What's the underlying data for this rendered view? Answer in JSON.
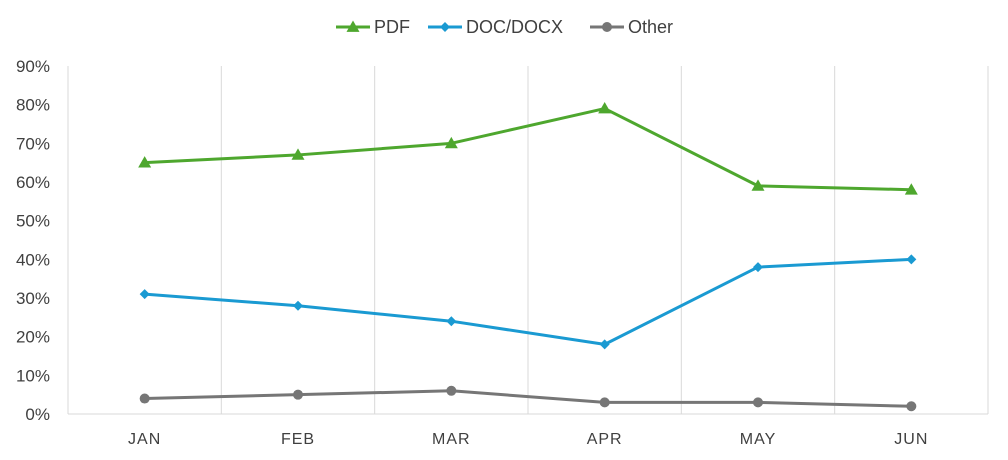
{
  "chart_data": {
    "type": "line",
    "categories": [
      "JAN",
      "FEB",
      "MAR",
      "APR",
      "MAY",
      "JUN"
    ],
    "y_ticks": [
      "0%",
      "10%",
      "20%",
      "30%",
      "40%",
      "50%",
      "60%",
      "70%",
      "80%",
      "90%"
    ],
    "ylim": [
      0,
      90
    ],
    "y_unit": "%",
    "grid": {
      "vertical": true,
      "horizontal": false
    },
    "legend_position": "top-center",
    "series": [
      {
        "name": "PDF",
        "values": [
          65,
          67,
          70,
          79,
          59,
          58
        ],
        "color": "#4ea72e",
        "marker": "triangle"
      },
      {
        "name": "DOC/DOCX",
        "values": [
          31,
          28,
          24,
          18,
          38,
          40
        ],
        "color": "#1a9ad2",
        "marker": "diamond"
      },
      {
        "name": "Other",
        "values": [
          4,
          5,
          6,
          3,
          3,
          2
        ],
        "color": "#767676",
        "marker": "circle"
      }
    ]
  }
}
